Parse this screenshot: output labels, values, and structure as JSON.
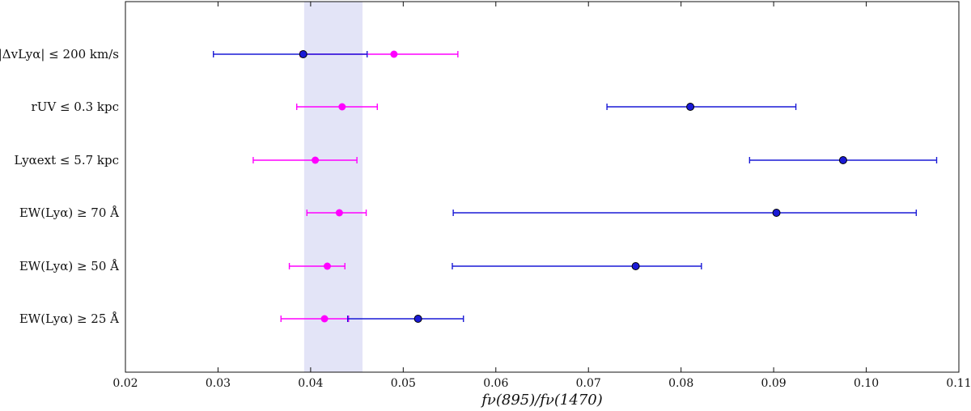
{
  "chart_data": {
    "type": "scatter",
    "xlabel": "fν(895)/fν(1470)",
    "xlim": [
      0.02,
      0.11
    ],
    "x_ticks": [
      "0.02",
      "0.03",
      "0.04",
      "0.05",
      "0.06",
      "0.07",
      "0.08",
      "0.09",
      "0.10",
      "0.11"
    ],
    "grid": false,
    "categories": [
      "|ΔvLyα| ≤ 200 km/s",
      "rUV ≤ 0.3 kpc",
      "Lyαext ≤ 5.7 kpc",
      "EW(Lyα) ≥ 70 Å",
      "EW(Lyα) ≥ 50 Å",
      "EW(Lyα) ≥ 25 Å"
    ],
    "band": {
      "x_range": [
        0.0393,
        0.0456
      ],
      "color": "#e3e4f7"
    },
    "series": [
      {
        "color": "#ff00ff",
        "points": [
          {
            "x": 0.049,
            "xerr": [
              0.0389,
              0.0559
            ]
          },
          {
            "x": 0.0434,
            "xerr": [
              0.0385,
              0.0472
            ]
          },
          {
            "x": 0.0405,
            "xerr": [
              0.0338,
              0.045
            ]
          },
          {
            "x": 0.0431,
            "xerr": [
              0.0396,
              0.046
            ]
          },
          {
            "x": 0.0418,
            "xerr": [
              0.0377,
              0.0437
            ]
          },
          {
            "x": 0.0415,
            "xerr": [
              0.0368,
              0.0441
            ]
          }
        ]
      },
      {
        "color": "#1a1ad6",
        "points": [
          {
            "x": 0.0392,
            "xerr": [
              0.0295,
              0.0461
            ]
          },
          {
            "x": 0.081,
            "xerr": [
              0.072,
              0.0924
            ]
          },
          {
            "x": 0.0975,
            "xerr": [
              0.0874,
              0.1076
            ]
          },
          {
            "x": 0.0903,
            "xerr": [
              0.0554,
              0.1054
            ]
          },
          {
            "x": 0.0751,
            "xerr": [
              0.0553,
              0.0822
            ]
          },
          {
            "x": 0.0516,
            "xerr": [
              0.044,
              0.0565
            ]
          }
        ]
      }
    ]
  }
}
